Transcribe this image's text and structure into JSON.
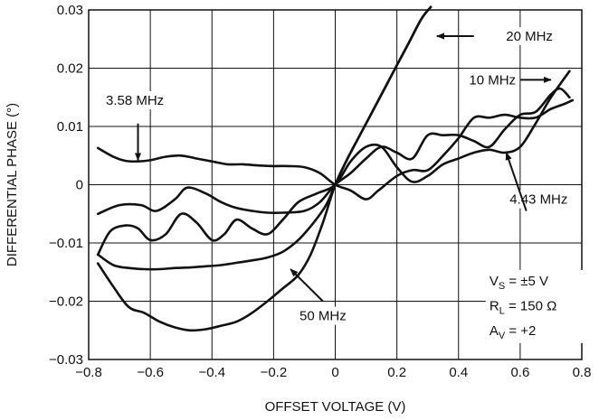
{
  "chart_data": {
    "type": "line",
    "title": "",
    "xlabel": "OFFSET VOLTAGE (V)",
    "ylabel": "DIFFERENTIAL PHASE (°)",
    "xlim": [
      -0.8,
      0.8
    ],
    "ylim": [
      -0.03,
      0.03
    ],
    "x_ticks": [
      "−0.8",
      "−0.6",
      "−0.4",
      "−0.2",
      "0",
      "0.2",
      "0.4",
      "0.6",
      "0.8"
    ],
    "y_ticks": [
      "0.03",
      "0.02",
      "0.01",
      "0",
      "−0.01",
      "−0.02",
      "−0.03"
    ],
    "grid": true,
    "line_color": "#111111",
    "series": [
      {
        "name": "3.58 MHz",
        "x": [
          -0.77,
          -0.72,
          -0.68,
          -0.64,
          -0.6,
          -0.55,
          -0.5,
          -0.45,
          -0.4,
          -0.35,
          -0.3,
          -0.25,
          -0.2,
          -0.15,
          -0.1,
          -0.05,
          0,
          0.05,
          0.1,
          0.14,
          0.2,
          0.25,
          0.3,
          0.35,
          0.4,
          0.45,
          0.5,
          0.55,
          0.6,
          0.65,
          0.7,
          0.74,
          0.77
        ],
        "y": [
          0.0063,
          0.0048,
          0.0041,
          0.004,
          0.0042,
          0.0048,
          0.005,
          0.0045,
          0.004,
          0.0035,
          0.0035,
          0.0033,
          0.0032,
          0.0032,
          0.003,
          0.002,
          0,
          -0.001,
          -0.0025,
          -0.001,
          0.0015,
          0.0025,
          0.0025,
          0.005,
          0.008,
          0.0115,
          0.0115,
          0.012,
          0.0115,
          0.0115,
          0.013,
          0.0138,
          0.0145
        ]
      },
      {
        "name": "4.43 MHz",
        "x": [
          -0.77,
          -0.7,
          -0.63,
          -0.58,
          -0.52,
          -0.48,
          -0.42,
          -0.37,
          -0.32,
          -0.27,
          -0.22,
          -0.17,
          -0.1,
          -0.05,
          0,
          0.05,
          0.1,
          0.15,
          0.2,
          0.25,
          0.3,
          0.35,
          0.4,
          0.45,
          0.5,
          0.55,
          0.6,
          0.65,
          0.7,
          0.73,
          0.76
        ],
        "y": [
          -0.005,
          -0.0035,
          -0.0035,
          -0.0045,
          -0.0025,
          -0.0005,
          -0.0015,
          -0.003,
          -0.004,
          -0.0045,
          -0.0048,
          -0.0048,
          -0.0045,
          -0.003,
          0,
          0.002,
          0.0045,
          0.0065,
          0.0055,
          0.0045,
          0.0085,
          0.0085,
          0.0085,
          0.0075,
          0.0065,
          0.0095,
          0.012,
          0.0125,
          0.0155,
          0.0165,
          0.015
        ]
      },
      {
        "name": "10 MHz",
        "x": [
          -0.77,
          -0.73,
          -0.68,
          -0.64,
          -0.6,
          -0.55,
          -0.5,
          -0.45,
          -0.4,
          -0.36,
          -0.32,
          -0.27,
          -0.22,
          -0.17,
          -0.12,
          -0.06,
          0,
          0.05,
          0.1,
          0.15,
          0.2,
          0.25,
          0.3,
          0.35,
          0.4,
          0.45,
          0.5,
          0.55,
          0.6,
          0.65,
          0.7,
          0.76
        ],
        "y": [
          -0.012,
          -0.008,
          -0.007,
          -0.0075,
          -0.0095,
          -0.0085,
          -0.005,
          -0.0065,
          -0.0095,
          -0.0085,
          -0.006,
          -0.0075,
          -0.0085,
          -0.006,
          -0.003,
          -0.0015,
          0,
          0.004,
          0.0065,
          0.0065,
          0.003,
          0.0005,
          0.0015,
          0.0035,
          0.0045,
          0.0055,
          0.006,
          0.0055,
          0.0065,
          0.0105,
          0.015,
          0.0195
        ]
      },
      {
        "name": "20 MHz",
        "x": [
          -0.77,
          -0.72,
          -0.67,
          -0.62,
          -0.57,
          -0.52,
          -0.47,
          -0.42,
          -0.37,
          -0.32,
          -0.27,
          -0.22,
          -0.17,
          -0.12,
          -0.07,
          -0.03,
          0,
          0.04,
          0.08,
          0.12,
          0.16,
          0.2,
          0.24,
          0.28,
          0.31
        ],
        "y": [
          -0.012,
          -0.0138,
          -0.0143,
          -0.0145,
          -0.0145,
          -0.0143,
          -0.0142,
          -0.014,
          -0.0138,
          -0.0134,
          -0.013,
          -0.0125,
          -0.0115,
          -0.0095,
          -0.0065,
          -0.0035,
          0,
          0.0045,
          0.0085,
          0.0125,
          0.0165,
          0.0205,
          0.0245,
          0.0285,
          0.0305
        ]
      },
      {
        "name": "50 MHz",
        "x": [
          -0.77,
          -0.72,
          -0.67,
          -0.62,
          -0.57,
          -0.52,
          -0.47,
          -0.42,
          -0.37,
          -0.32,
          -0.27,
          -0.22,
          -0.17,
          -0.12,
          -0.08,
          -0.04,
          0,
          0.04,
          0.08,
          0.12,
          0.16,
          0.2,
          0.24,
          0.28,
          0.31
        ],
        "y": [
          -0.0135,
          -0.0175,
          -0.021,
          -0.022,
          -0.0235,
          -0.0245,
          -0.025,
          -0.0248,
          -0.0242,
          -0.0235,
          -0.022,
          -0.02,
          -0.0178,
          -0.0155,
          -0.012,
          -0.0065,
          0,
          0.0045,
          0.0085,
          0.0125,
          0.0165,
          0.0205,
          0.0245,
          0.0285,
          0.0305
        ]
      }
    ],
    "annotations": [
      {
        "label": "3.58 MHz",
        "text_x": -0.65,
        "text_y": 0.0145,
        "arrow_from": [
          -0.64,
          0.0105
        ],
        "arrow_to": [
          -0.64,
          0.0042
        ]
      },
      {
        "label": "4.43 MHz",
        "text_x": 0.66,
        "text_y": -0.0025,
        "arrow_from": [
          0.62,
          -0.0045
        ],
        "arrow_to": [
          0.555,
          0.0055
        ]
      },
      {
        "label": "10 MHz",
        "text_x": 0.51,
        "text_y": 0.018,
        "arrow_from": [
          0.6,
          0.018
        ],
        "arrow_to": [
          0.7,
          0.018
        ]
      },
      {
        "label": "20 MHz",
        "text_x": 0.63,
        "text_y": 0.0255,
        "arrow_from": [
          0.45,
          0.0255
        ],
        "arrow_to": [
          0.33,
          0.0255
        ]
      },
      {
        "label": "50 MHz",
        "text_x": -0.04,
        "text_y": -0.0225,
        "arrow_from": [
          -0.04,
          -0.02
        ],
        "arrow_to": [
          -0.145,
          -0.0145
        ]
      }
    ],
    "conditions": [
      "±5 V",
      "150 Ω",
      "+2"
    ]
  }
}
